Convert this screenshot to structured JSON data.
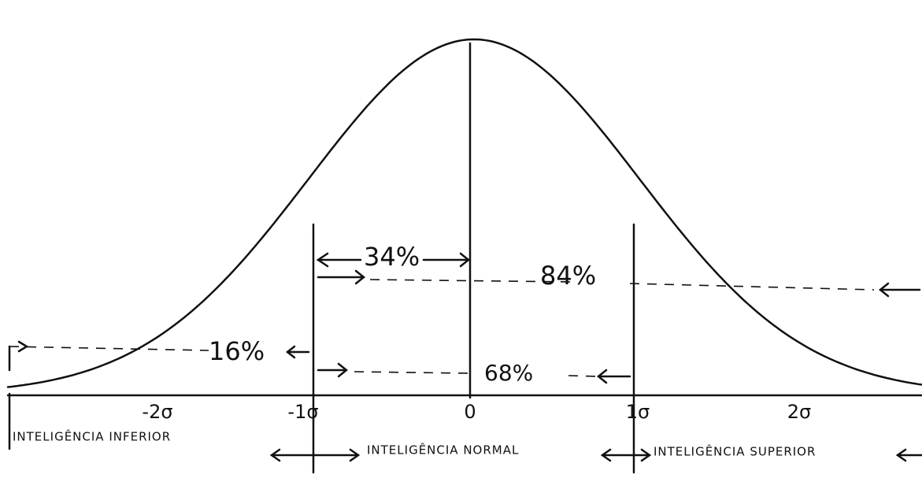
{
  "axis_labels": [
    "-2σ",
    "-1σ",
    "0",
    "1σ",
    "2σ"
  ],
  "annotations": {
    "upper_left": "34%",
    "upper_total": "84%",
    "lower_left": "16%",
    "middle": "68%"
  },
  "regions": [
    "INTELIGÊNCIA INFERIOR",
    "INTELIGÊNCIA NORMAL",
    "INTELIGÊNCIA SUPERIOR"
  ]
}
